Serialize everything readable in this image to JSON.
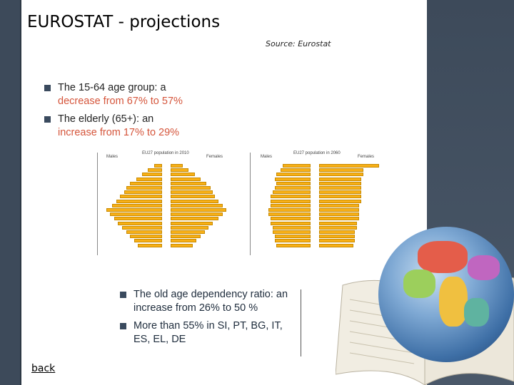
{
  "slide": {
    "title": "EUROSTAT - projections",
    "source": "Source: Eurostat",
    "bullets_top": [
      {
        "text_before": "The 15-64 age group: a",
        "text_red": "decrease",
        "text_after": " from 67% to 57%"
      },
      {
        "text_before": "The elderly (65+): an",
        "text_red": "increase",
        "text_after": " from 17% to 29%"
      }
    ],
    "bullets_bottom": [
      {
        "text": "The old age dependency ratio: an increase from 26% to 50 %"
      },
      {
        "text": "More than 55% in SI, PT, BG, IT, ES, EL, DE"
      }
    ],
    "back_link": "back"
  },
  "pyramids": [
    {
      "title": "EU27 population in 2010",
      "left_label": "Males",
      "right_label": "Females",
      "males": [
        4,
        7,
        10,
        13,
        16,
        18,
        19,
        21,
        23,
        25,
        28,
        26,
        24,
        22,
        20,
        18,
        16,
        14,
        12
      ],
      "females": [
        6,
        9,
        12,
        15,
        18,
        20,
        21,
        22,
        24,
        26,
        28,
        26,
        24,
        21,
        19,
        17,
        15,
        13,
        11
      ]
    },
    {
      "title": "EU27 population in 2060",
      "left_label": "Males",
      "right_label": "Females",
      "males": [
        14,
        15,
        17,
        18,
        17,
        18,
        19,
        20,
        20,
        20,
        21,
        21,
        20,
        20,
        19,
        19,
        18,
        18,
        17
      ],
      "females": [
        30,
        22,
        22,
        21,
        21,
        21,
        21,
        21,
        21,
        20,
        20,
        20,
        20,
        19,
        19,
        18,
        18,
        18,
        17
      ]
    }
  ],
  "colors": {
    "bar": "#f8b017",
    "accent_red": "#d5553b",
    "bg_dark": "#3d4a5a"
  }
}
